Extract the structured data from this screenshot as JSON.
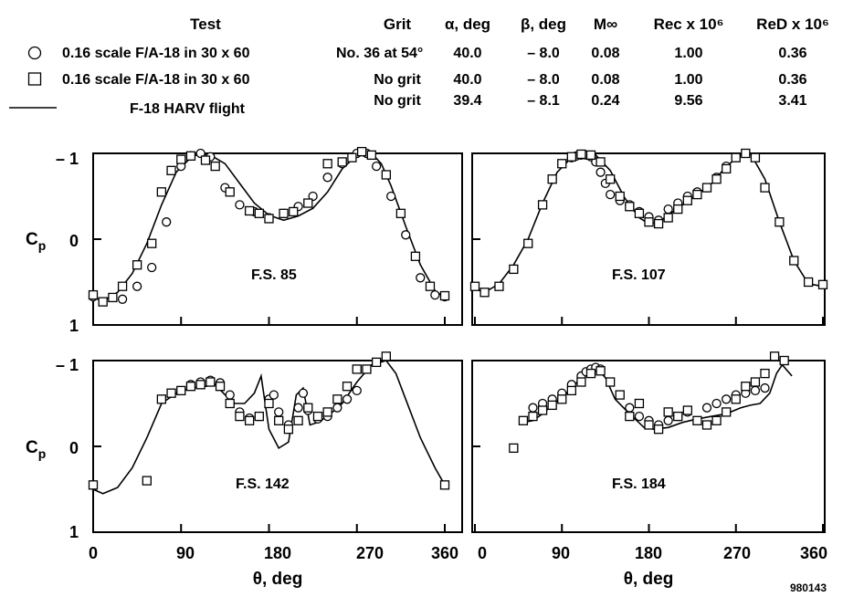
{
  "legend": {
    "headers": {
      "test": "Test",
      "grit": "Grit",
      "alpha": "α, deg",
      "beta": "β, deg",
      "mach": "M∞",
      "rec": "Rec x 10⁶",
      "red": "ReD x 10⁶"
    },
    "rows": [
      {
        "symbol": "circle",
        "test": "0.16 scale F/A-18 in 30 x 60",
        "grit": "No. 36 at 54°",
        "alpha": "40.0",
        "beta": "– 8.0",
        "mach": "0.08",
        "rec": "1.00",
        "red": "0.36"
      },
      {
        "symbol": "square",
        "test": "0.16 scale F/A-18 in 30 x 60",
        "grit": "No grit",
        "alpha": "40.0",
        "beta": "– 8.0",
        "mach": "0.08",
        "rec": "1.00",
        "red": "0.36"
      },
      {
        "symbol": "line",
        "test": "F-18 HARV flight",
        "grit": "No grit",
        "alpha": "39.4",
        "beta": "– 8.1",
        "mach": "0.24",
        "rec": "9.56",
        "red": "3.41"
      }
    ]
  },
  "figure_id": "980143",
  "chart_data": [
    {
      "type": "scatter",
      "panel": "F.S. 85",
      "xlabel": "θ, deg",
      "ylabel": "Cp",
      "xlim": [
        0,
        360
      ],
      "ylim": [
        1,
        -1
      ],
      "xticks": [
        "0",
        "90",
        "180",
        "270",
        "360"
      ],
      "yticks": [
        "– 1",
        "0",
        "1"
      ],
      "series": [
        {
          "name": "0.16 scale F/A-18 in 30 x 60",
          "marker": "circle",
          "x": [
            0,
            30,
            45,
            60,
            75,
            90,
            100,
            110,
            120,
            135,
            150,
            165,
            180,
            195,
            210,
            225,
            240,
            255,
            270,
            280,
            290,
            305,
            320,
            335,
            350,
            360
          ],
          "y": [
            0.67,
            0.7,
            0.55,
            0.33,
            -0.2,
            -0.85,
            -0.97,
            -1.0,
            -0.96,
            -0.6,
            -0.4,
            -0.32,
            -0.25,
            -0.3,
            -0.38,
            -0.5,
            -0.72,
            -0.88,
            -1.0,
            -1.0,
            -0.85,
            -0.5,
            -0.05,
            0.45,
            0.65,
            0.67
          ]
        },
        {
          "name": "0.16 scale F/A-18 in 30 x 60",
          "marker": "square",
          "x": [
            0,
            10,
            20,
            30,
            45,
            60,
            70,
            80,
            90,
            100,
            115,
            125,
            140,
            160,
            170,
            180,
            195,
            205,
            220,
            240,
            255,
            265,
            275,
            285,
            300,
            315,
            330,
            345,
            360
          ],
          "y": [
            0.65,
            0.73,
            0.68,
            0.55,
            0.3,
            0.05,
            -0.55,
            -0.8,
            -0.93,
            -0.97,
            -0.92,
            -0.85,
            -0.55,
            -0.33,
            -0.3,
            -0.24,
            -0.3,
            -0.32,
            -0.42,
            -0.88,
            -0.9,
            -0.95,
            -1.02,
            -0.98,
            -0.75,
            -0.3,
            0.2,
            0.55,
            0.66
          ]
        },
        {
          "name": "F-18 HARV flight",
          "marker": "line",
          "x": [
            0,
            10,
            25,
            40,
            55,
            70,
            85,
            100,
            110,
            120,
            135,
            150,
            165,
            180,
            195,
            210,
            225,
            240,
            255,
            270,
            285,
            295,
            305,
            320,
            335,
            350,
            360
          ],
          "y": [
            0.68,
            0.72,
            0.62,
            0.4,
            0.05,
            -0.4,
            -0.78,
            -0.95,
            -1.0,
            -0.98,
            -0.88,
            -0.65,
            -0.42,
            -0.28,
            -0.22,
            -0.27,
            -0.36,
            -0.55,
            -0.82,
            -0.98,
            -1.0,
            -0.88,
            -0.62,
            -0.15,
            0.3,
            0.6,
            0.68
          ]
        }
      ]
    },
    {
      "type": "scatter",
      "panel": "F.S. 107",
      "xlabel": "θ, deg",
      "ylabel": "",
      "xlim": [
        0,
        360
      ],
      "ylim": [
        1,
        -1
      ],
      "xticks": [
        "0",
        "90",
        "180",
        "270",
        "360"
      ],
      "yticks": [],
      "series": [
        {
          "name": "0.16 scale F/A-18 in 30 x 60",
          "marker": "circle",
          "x": [
            100,
            105,
            110,
            115,
            120,
            125,
            130,
            135,
            140,
            150,
            160,
            170,
            180,
            190,
            200,
            210,
            220,
            230,
            240,
            250,
            260,
            270
          ],
          "y": [
            -0.95,
            -0.97,
            -0.98,
            -0.98,
            -0.96,
            -0.9,
            -0.78,
            -0.65,
            -0.52,
            -0.45,
            -0.4,
            -0.32,
            -0.26,
            -0.22,
            -0.35,
            -0.42,
            -0.5,
            -0.55,
            -0.6,
            -0.72,
            -0.85,
            -0.95
          ]
        },
        {
          "name": "0.16 scale F/A-18 in 30 x 60",
          "marker": "square",
          "x": [
            0,
            10,
            25,
            40,
            55,
            70,
            80,
            90,
            100,
            110,
            120,
            130,
            140,
            150,
            160,
            170,
            180,
            190,
            200,
            210,
            220,
            230,
            240,
            250,
            260,
            270,
            280,
            290,
            300,
            315,
            330,
            345,
            360
          ],
          "y": [
            0.55,
            0.62,
            0.55,
            0.35,
            0.05,
            -0.4,
            -0.7,
            -0.88,
            -0.96,
            -0.99,
            -0.98,
            -0.9,
            -0.7,
            -0.5,
            -0.38,
            -0.3,
            -0.2,
            -0.18,
            -0.25,
            -0.35,
            -0.45,
            -0.52,
            -0.6,
            -0.7,
            -0.82,
            -0.95,
            -1.0,
            -0.95,
            -0.6,
            -0.2,
            0.25,
            0.5,
            0.53
          ]
        },
        {
          "name": "F-18 HARV flight",
          "marker": "line",
          "x": [
            0,
            10,
            25,
            40,
            55,
            70,
            85,
            100,
            115,
            125,
            140,
            155,
            170,
            180,
            190,
            200,
            215,
            230,
            245,
            260,
            275,
            285,
            300,
            315,
            330,
            345,
            360
          ],
          "y": [
            0.58,
            0.62,
            0.52,
            0.3,
            0.0,
            -0.42,
            -0.78,
            -0.95,
            -1.0,
            -0.98,
            -0.8,
            -0.48,
            -0.25,
            -0.18,
            -0.2,
            -0.28,
            -0.4,
            -0.52,
            -0.65,
            -0.85,
            -0.98,
            -1.0,
            -0.7,
            -0.2,
            0.25,
            0.52,
            0.55
          ]
        }
      ]
    },
    {
      "type": "scatter",
      "panel": "F.S. 142",
      "xlabel": "θ, deg",
      "ylabel": "Cp",
      "xlim": [
        0,
        360
      ],
      "ylim": [
        1,
        -1
      ],
      "xticks": [
        "0",
        "90",
        "180",
        "270",
        "360"
      ],
      "yticks": [
        "– 1",
        "0",
        "1"
      ],
      "series": [
        {
          "name": "0.16 scale F/A-18 in 30 x 60",
          "marker": "circle",
          "x": [
            100,
            110,
            120,
            130,
            140,
            150,
            160,
            170,
            180,
            185,
            190,
            200,
            210,
            215,
            220,
            230,
            240,
            250,
            260,
            270
          ],
          "y": [
            -0.72,
            -0.75,
            -0.77,
            -0.74,
            -0.6,
            -0.4,
            -0.33,
            -0.35,
            -0.55,
            -0.6,
            -0.4,
            -0.25,
            -0.45,
            -0.62,
            -0.42,
            -0.32,
            -0.35,
            -0.45,
            -0.55,
            -0.65
          ]
        },
        {
          "name": "0.16 scale F/A-18 in 30 x 60",
          "marker": "square",
          "x": [
            0,
            55,
            70,
            80,
            90,
            100,
            110,
            120,
            130,
            140,
            150,
            160,
            170,
            180,
            190,
            200,
            210,
            220,
            230,
            240,
            250,
            260,
            270,
            280,
            290,
            300,
            360
          ],
          "y": [
            0.45,
            0.4,
            -0.55,
            -0.62,
            -0.65,
            -0.7,
            -0.72,
            -0.75,
            -0.7,
            -0.5,
            -0.35,
            -0.3,
            -0.35,
            -0.5,
            -0.3,
            -0.2,
            -0.3,
            -0.45,
            -0.35,
            -0.4,
            -0.55,
            -0.7,
            -0.9,
            -0.9,
            -0.98,
            -1.05,
            0.45
          ]
        },
        {
          "name": "F-18 HARV flight",
          "marker": "line",
          "x": [
            0,
            10,
            25,
            40,
            55,
            70,
            85,
            100,
            115,
            125,
            135,
            145,
            155,
            165,
            172,
            180,
            190,
            200,
            208,
            215,
            222,
            230,
            240,
            255,
            270,
            285,
            300,
            310,
            320,
            335,
            350,
            360
          ],
          "y": [
            0.5,
            0.55,
            0.48,
            0.25,
            -0.1,
            -0.5,
            -0.62,
            -0.68,
            -0.7,
            -0.72,
            -0.6,
            -0.5,
            -0.5,
            -0.62,
            -0.82,
            -0.2,
            0.02,
            -0.05,
            -0.6,
            -0.68,
            -0.25,
            -0.28,
            -0.35,
            -0.5,
            -0.75,
            -0.95,
            -1.0,
            -0.85,
            -0.55,
            -0.1,
            0.25,
            0.45
          ]
        }
      ]
    },
    {
      "type": "scatter",
      "panel": "F.S. 184",
      "xlabel": "θ, deg",
      "ylabel": "",
      "xlim": [
        0,
        360
      ],
      "ylim": [
        1,
        -1
      ],
      "xticks": [
        "0",
        "90",
        "180",
        "270",
        "360"
      ],
      "yticks": [],
      "series": [
        {
          "name": "0.16 scale F/A-18 in 30 x 60",
          "marker": "circle",
          "x": [
            60,
            70,
            80,
            90,
            100,
            110,
            115,
            120,
            125,
            130,
            160,
            170,
            180,
            190,
            200,
            210,
            220,
            240,
            250,
            260,
            270,
            280,
            290,
            300
          ],
          "y": [
            -0.45,
            -0.5,
            -0.55,
            -0.62,
            -0.72,
            -0.82,
            -0.87,
            -0.9,
            -0.92,
            -0.9,
            -0.45,
            -0.35,
            -0.3,
            -0.25,
            -0.3,
            -0.35,
            -0.4,
            -0.45,
            -0.5,
            -0.55,
            -0.6,
            -0.62,
            -0.65,
            -0.68
          ]
        },
        {
          "name": "0.16 scale F/A-18 in 30 x 60",
          "marker": "square",
          "x": [
            40,
            50,
            60,
            70,
            80,
            90,
            100,
            110,
            120,
            130,
            140,
            150,
            160,
            170,
            180,
            190,
            200,
            210,
            220,
            230,
            240,
            250,
            260,
            270,
            280,
            290,
            300,
            310,
            320
          ],
          "y": [
            0.02,
            -0.3,
            -0.35,
            -0.42,
            -0.48,
            -0.55,
            -0.65,
            -0.75,
            -0.85,
            -0.88,
            -0.75,
            -0.6,
            -0.35,
            -0.5,
            -0.25,
            -0.2,
            -0.4,
            -0.35,
            -0.42,
            -0.3,
            -0.25,
            -0.3,
            -0.4,
            -0.55,
            -0.7,
            -0.75,
            -0.85,
            -1.05,
            -1.0
          ]
        },
        {
          "name": "F-18 HARV flight",
          "marker": "line",
          "x": [
            50,
            60,
            70,
            80,
            95,
            110,
            120,
            127,
            135,
            145,
            160,
            175,
            185,
            200,
            215,
            230,
            245,
            260,
            275,
            285,
            295,
            305,
            312,
            318,
            328
          ],
          "y": [
            -0.28,
            -0.3,
            -0.38,
            -0.48,
            -0.62,
            -0.8,
            -0.88,
            -0.9,
            -0.8,
            -0.55,
            -0.38,
            -0.22,
            -0.2,
            -0.22,
            -0.28,
            -0.32,
            -0.35,
            -0.38,
            -0.45,
            -0.48,
            -0.5,
            -0.62,
            -0.85,
            -0.95,
            -0.82
          ]
        }
      ]
    }
  ]
}
